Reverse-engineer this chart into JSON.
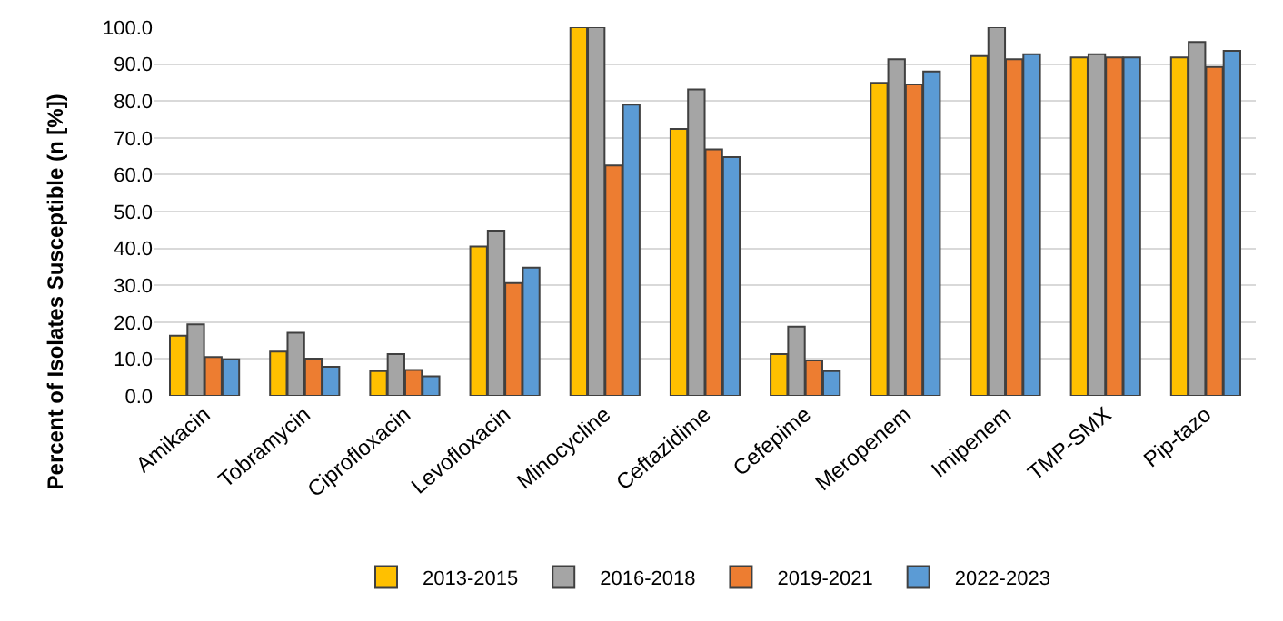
{
  "chart_data": {
    "type": "bar",
    "ylabel": "Percent of Isolates Susceptible (n [%])",
    "categories": [
      "Amikacin",
      "Tobramycin",
      "Ciprofloxacin",
      "Levofloxacin",
      "Minocycline",
      "Ceftazidime",
      "Cefepime",
      "Meropenem",
      "Imipenem",
      "TMP-SMX",
      "Pip-tazo"
    ],
    "series": [
      {
        "name": "2013-2015",
        "color": "#ffc000",
        "values": [
          16.3,
          12.0,
          6.7,
          40.5,
          100,
          72.4,
          11.3,
          84.9,
          92.2,
          91.8,
          91.8
        ]
      },
      {
        "name": "2016-2018",
        "color": "#a5a5a5",
        "values": [
          19.4,
          17.1,
          11.3,
          44.8,
          100,
          83.1,
          18.8,
          91.3,
          100,
          92.7,
          96.0
        ]
      },
      {
        "name": "2019-2021",
        "color": "#ed7d31",
        "values": [
          10.5,
          10.1,
          7.0,
          30.6,
          62.5,
          66.9,
          9.6,
          84.5,
          91.3,
          91.8,
          89.2
        ]
      },
      {
        "name": "2022-2023",
        "color": "#5b9bd5",
        "values": [
          9.9,
          7.9,
          5.3,
          34.8,
          79.0,
          64.8,
          6.7,
          88.0,
          92.7,
          91.8,
          93.6
        ]
      }
    ],
    "ylim": [
      0,
      100
    ],
    "yticks": [
      {
        "value": 0,
        "label": "0.0"
      },
      {
        "value": 10,
        "label": "10.0"
      },
      {
        "value": 20,
        "label": "20.0"
      },
      {
        "value": 30,
        "label": "30.0"
      },
      {
        "value": 40,
        "label": "40.0"
      },
      {
        "value": 50,
        "label": "50.0"
      },
      {
        "value": 60,
        "label": "60.0"
      },
      {
        "value": 70,
        "label": "70.0"
      },
      {
        "value": 80,
        "label": "80.0"
      },
      {
        "value": 90,
        "label": "90.0"
      },
      {
        "value": 100,
        "label": "100.0"
      }
    ],
    "grid": "y",
    "legend": "bottom"
  }
}
